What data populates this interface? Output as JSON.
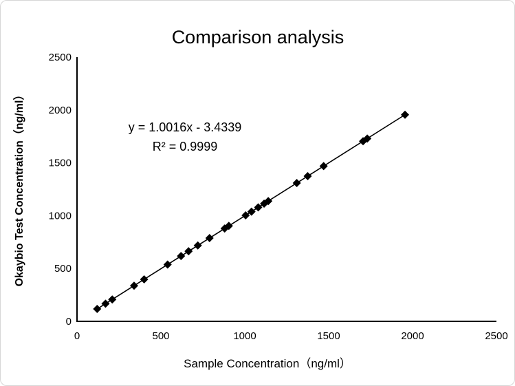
{
  "window": {
    "background": "#ffffff",
    "border_color": "#d6d6d6",
    "ink_color": "#000000"
  },
  "chart_data": {
    "type": "scatter",
    "title": "Comparison analysis",
    "xlabel": "Sample Concentration（ng/ml）",
    "ylabel": "Okaybio Test Concentration（ng/ml）",
    "xlim": [
      0,
      2500
    ],
    "ylim": [
      0,
      2500
    ],
    "x_ticks": [
      "0",
      "500",
      "1000",
      "1500",
      "2000",
      "2500"
    ],
    "y_ticks": [
      "0",
      "500",
      "1000",
      "1500",
      "2000",
      "2500"
    ],
    "grid": false,
    "legend": false,
    "marker": {
      "shape": "diamond",
      "color": "#000000",
      "size": 12
    },
    "trendline": {
      "slope": 1.0016,
      "intercept": -3.4339,
      "color": "#000000",
      "x_start": 120,
      "x_end": 1955
    },
    "annotation": {
      "equation": "y = 1.0016x - 3.4339",
      "r_squared": "R² = 0.9999"
    },
    "points": [
      {
        "x": 120,
        "y": 117
      },
      {
        "x": 170,
        "y": 167
      },
      {
        "x": 210,
        "y": 207
      },
      {
        "x": 340,
        "y": 337
      },
      {
        "x": 400,
        "y": 397
      },
      {
        "x": 540,
        "y": 537
      },
      {
        "x": 620,
        "y": 618
      },
      {
        "x": 665,
        "y": 663
      },
      {
        "x": 720,
        "y": 718
      },
      {
        "x": 790,
        "y": 788
      },
      {
        "x": 880,
        "y": 878
      },
      {
        "x": 905,
        "y": 903
      },
      {
        "x": 1005,
        "y": 1003
      },
      {
        "x": 1040,
        "y": 1038
      },
      {
        "x": 1080,
        "y": 1078
      },
      {
        "x": 1115,
        "y": 1113
      },
      {
        "x": 1140,
        "y": 1138
      },
      {
        "x": 1310,
        "y": 1309
      },
      {
        "x": 1375,
        "y": 1374
      },
      {
        "x": 1470,
        "y": 1469
      },
      {
        "x": 1705,
        "y": 1704
      },
      {
        "x": 1730,
        "y": 1729
      },
      {
        "x": 1955,
        "y": 1955
      }
    ]
  }
}
